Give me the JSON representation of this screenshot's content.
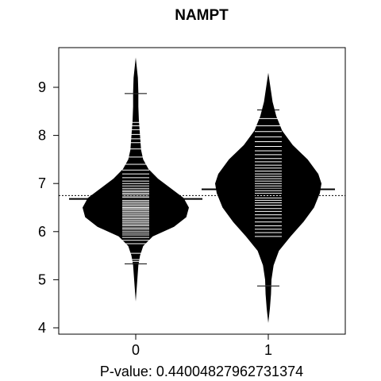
{
  "chart_data": {
    "type": "beanplot",
    "title": "NAMPT",
    "xlabel": "P-value: 0.44004827962731374",
    "ylabel": "",
    "categories": [
      "0",
      "1"
    ],
    "y_ticks": [
      4,
      5,
      6,
      7,
      8,
      9
    ],
    "ylim": [
      3.9,
      9.85
    ],
    "overall_mean": 6.75,
    "grid": false,
    "legend": "none",
    "colors": {
      "bean": "#000000",
      "lines": "#ffffff",
      "axes": "#000000",
      "background": "#ffffff"
    },
    "beans": [
      {
        "category": "0",
        "mean": 6.68,
        "range": [
          4.55,
          9.62
        ],
        "density": [
          [
            4.55,
            0.0
          ],
          [
            5.0,
            0.03
          ],
          [
            5.3,
            0.05
          ],
          [
            5.5,
            0.08
          ],
          [
            5.7,
            0.14
          ],
          [
            5.9,
            0.32
          ],
          [
            6.1,
            0.72
          ],
          [
            6.3,
            0.95
          ],
          [
            6.5,
            1.0
          ],
          [
            6.7,
            0.9
          ],
          [
            6.9,
            0.66
          ],
          [
            7.1,
            0.42
          ],
          [
            7.3,
            0.24
          ],
          [
            7.5,
            0.14
          ],
          [
            7.7,
            0.1
          ],
          [
            8.0,
            0.08
          ],
          [
            8.3,
            0.06
          ],
          [
            8.6,
            0.05
          ],
          [
            8.9,
            0.05
          ],
          [
            9.2,
            0.04
          ],
          [
            9.62,
            0.0
          ]
        ],
        "observations": [
          5.33,
          5.38,
          5.42,
          5.55,
          5.75,
          5.82,
          5.88,
          5.93,
          5.97,
          6.01,
          6.05,
          6.08,
          6.12,
          6.15,
          6.18,
          6.21,
          6.24,
          6.27,
          6.3,
          6.33,
          6.36,
          6.39,
          6.42,
          6.45,
          6.48,
          6.5,
          6.53,
          6.56,
          6.59,
          6.62,
          6.65,
          6.68,
          6.71,
          6.74,
          6.77,
          6.8,
          6.83,
          6.86,
          6.9,
          6.95,
          7.0,
          7.05,
          7.12,
          7.2,
          7.28,
          7.4,
          7.55,
          7.72,
          7.85,
          7.93,
          8.02,
          8.12,
          8.2,
          8.27,
          8.87
        ]
      },
      {
        "category": "1",
        "mean": 6.88,
        "range": [
          4.1,
          9.3
        ],
        "density": [
          [
            4.1,
            0.0
          ],
          [
            4.4,
            0.03
          ],
          [
            4.7,
            0.05
          ],
          [
            5.0,
            0.06
          ],
          [
            5.3,
            0.1
          ],
          [
            5.6,
            0.2
          ],
          [
            5.9,
            0.42
          ],
          [
            6.2,
            0.66
          ],
          [
            6.5,
            0.86
          ],
          [
            6.8,
            0.97
          ],
          [
            7.0,
            1.0
          ],
          [
            7.2,
            0.94
          ],
          [
            7.5,
            0.74
          ],
          [
            7.8,
            0.46
          ],
          [
            8.1,
            0.26
          ],
          [
            8.4,
            0.15
          ],
          [
            8.7,
            0.08
          ],
          [
            9.0,
            0.04
          ],
          [
            9.3,
            0.0
          ]
        ],
        "observations": [
          4.87,
          5.9,
          5.98,
          6.05,
          6.12,
          6.2,
          6.28,
          6.35,
          6.42,
          6.48,
          6.55,
          6.6,
          6.65,
          6.7,
          6.75,
          6.8,
          6.85,
          6.9,
          6.95,
          7.0,
          7.05,
          7.1,
          7.15,
          7.2,
          7.26,
          7.32,
          7.38,
          7.45,
          7.52,
          7.6,
          7.68,
          7.77,
          7.87,
          7.97,
          8.08,
          8.2,
          8.35,
          8.53
        ]
      }
    ]
  }
}
